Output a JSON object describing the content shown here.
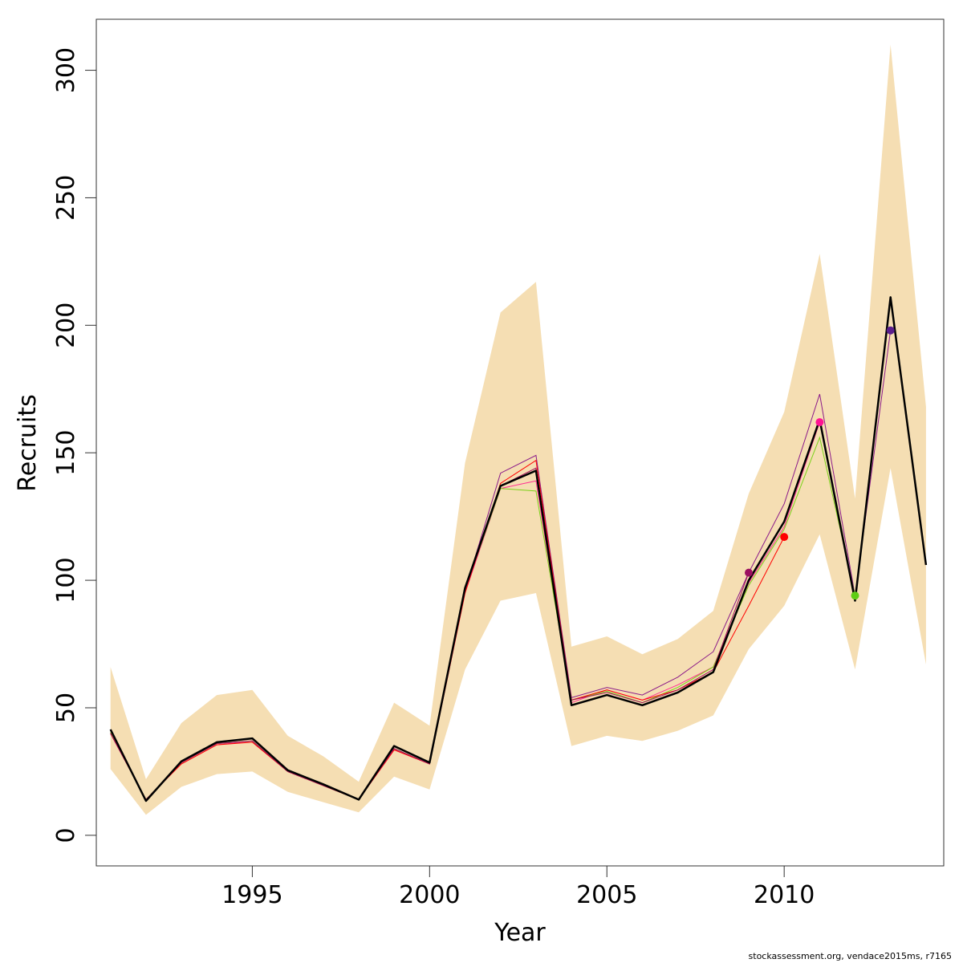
{
  "chart_data": {
    "type": "line",
    "xlabel": "Year",
    "ylabel": "Recruits",
    "xlim": [
      1990.6,
      2014.5
    ],
    "ylim": [
      -12,
      320
    ],
    "x_ticks": [
      1995,
      2000,
      2005,
      2010
    ],
    "y_ticks": [
      0,
      50,
      100,
      150,
      200,
      250,
      300
    ],
    "x": [
      1991,
      1992,
      1993,
      1994,
      1995,
      1996,
      1997,
      1998,
      1999,
      2000,
      2001,
      2002,
      2003,
      2004,
      2005,
      2006,
      2007,
      2008,
      2009,
      2010,
      2011,
      2012,
      2013,
      2014
    ],
    "band": {
      "color": "#f5deb3",
      "lower": [
        26,
        8,
        19,
        24,
        25,
        17,
        13,
        9,
        23,
        18,
        65,
        92,
        95,
        35,
        39,
        37,
        41,
        47,
        73,
        90,
        118,
        65,
        144,
        67
      ],
      "upper": [
        66,
        22,
        44,
        55,
        57,
        39,
        31,
        21,
        52,
        43,
        146,
        205,
        217,
        74,
        78,
        71,
        77,
        88,
        134,
        166,
        228,
        132,
        310,
        168
      ]
    },
    "main_series": {
      "color": "#000000",
      "values": [
        41.5,
        13.5,
        29,
        36.5,
        38,
        25.5,
        20,
        14,
        35,
        28.5,
        97,
        137,
        143,
        51,
        55,
        51,
        56,
        64,
        100,
        123,
        163,
        92,
        211,
        106
      ]
    },
    "retrospective_series": [
      {
        "color": "#8b1a89",
        "x": [
          1991,
          1992,
          1993,
          1994,
          1995,
          1996,
          1997,
          1998,
          1999,
          2000,
          2001,
          2002,
          2003,
          2004,
          2005,
          2006,
          2007,
          2008,
          2009,
          2010,
          2011,
          2012,
          2013
        ],
        "values": [
          40,
          14,
          28.5,
          36,
          37,
          25,
          19.5,
          14,
          34,
          28,
          96,
          142,
          149,
          54,
          58,
          55,
          62,
          72,
          103,
          130,
          173,
          94,
          198
        ],
        "point": [
          2013,
          198
        ],
        "point_color": "#5a1e8c"
      },
      {
        "color": "#ff2f92",
        "x": [
          1991,
          1992,
          1993,
          1994,
          1995,
          1996,
          1997,
          1998,
          1999,
          2000,
          2001,
          2002,
          2003,
          2004,
          2005,
          2006,
          2007,
          2008,
          2009,
          2010,
          2011
        ],
        "values": [
          40,
          14,
          28,
          35.5,
          37,
          25,
          19.5,
          14,
          33.5,
          28,
          95,
          136,
          139,
          52,
          57,
          53,
          59,
          66,
          99,
          121,
          162
        ],
        "point": [
          2011,
          162
        ],
        "point_color": "#ff1493"
      },
      {
        "color": "#7cd11a",
        "x": [
          1991,
          1992,
          1993,
          1994,
          1995,
          1996,
          1997,
          1998,
          1999,
          2000,
          2001,
          2002,
          2003,
          2004,
          2005,
          2006,
          2007,
          2008,
          2009,
          2010,
          2011,
          2012
        ],
        "values": [
          40.5,
          14,
          28.5,
          36,
          37,
          25,
          19.5,
          14,
          34,
          28,
          96,
          136,
          135,
          53,
          56.5,
          52,
          58,
          66,
          98,
          120,
          156,
          94
        ],
        "point": [
          2012,
          94
        ],
        "point_color": "#5fcd14"
      },
      {
        "color": "#ff0000",
        "x": [
          1991,
          1992,
          1993,
          1994,
          1995,
          1996,
          1997,
          1998,
          1999,
          2000,
          2001,
          2002,
          2003,
          2004,
          2005,
          2006,
          2007,
          2008,
          2009,
          2010
        ],
        "values": [
          40,
          14,
          28,
          35.5,
          36.5,
          25,
          19.5,
          14,
          33.5,
          28,
          95,
          138,
          147,
          53,
          57,
          53,
          57,
          64,
          90,
          117
        ],
        "point": [
          2010,
          117
        ],
        "point_color": "#ff0000"
      },
      {
        "color": "#a0105a",
        "x": [
          1991,
          1992,
          1993,
          1994,
          1995,
          1996,
          1997,
          1998,
          1999,
          2000,
          2001,
          2002,
          2003,
          2004,
          2005,
          2006,
          2007,
          2008,
          2009
        ],
        "values": [
          40,
          14,
          28.5,
          36,
          37,
          25,
          19.5,
          14,
          34,
          28,
          96,
          137,
          144,
          53,
          56,
          52,
          57,
          65,
          103
        ],
        "point": [
          2009,
          103
        ],
        "point_color": "#9b1060"
      }
    ]
  },
  "footer": "stockassessment.org, vendace2015ms, r7165"
}
